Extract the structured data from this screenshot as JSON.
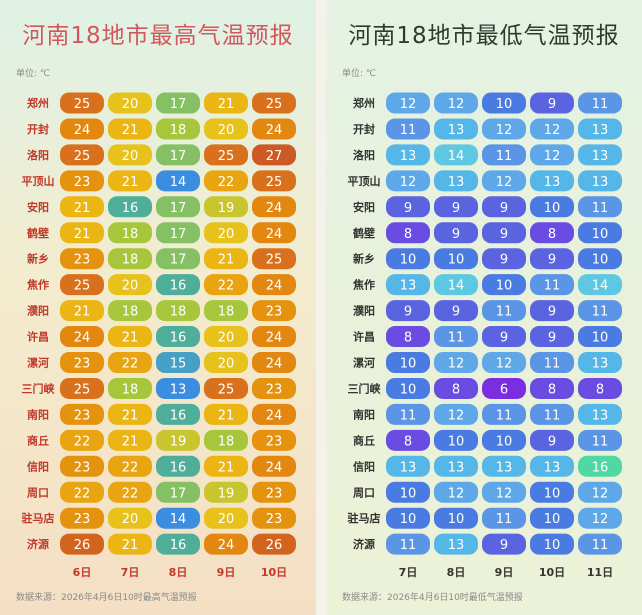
{
  "chart_data": [
    {
      "type": "heatmap",
      "title": "河南18地市最高气温预报",
      "unit_label": "单位: ℃",
      "source": "数据来源：2026年4月6日10时最高气温预报",
      "columns": [
        "6日",
        "7日",
        "8日",
        "9日",
        "10日"
      ],
      "rows": [
        "郑州",
        "开封",
        "洛阳",
        "平顶山",
        "安阳",
        "鹤壁",
        "新乡",
        "焦作",
        "濮阳",
        "许昌",
        "漯河",
        "三门峡",
        "南阳",
        "商丘",
        "信阳",
        "周口",
        "驻马店",
        "济源"
      ],
      "values": [
        [
          25,
          20,
          17,
          21,
          25
        ],
        [
          24,
          21,
          18,
          20,
          24
        ],
        [
          25,
          20,
          17,
          25,
          27
        ],
        [
          23,
          21,
          14,
          22,
          25
        ],
        [
          21,
          16,
          17,
          19,
          24
        ],
        [
          21,
          18,
          17,
          20,
          24
        ],
        [
          23,
          18,
          17,
          21,
          25
        ],
        [
          25,
          20,
          16,
          22,
          24
        ],
        [
          21,
          18,
          18,
          18,
          23
        ],
        [
          24,
          21,
          16,
          20,
          24
        ],
        [
          23,
          22,
          15,
          20,
          24
        ],
        [
          25,
          18,
          13,
          25,
          23
        ],
        [
          23,
          21,
          16,
          21,
          24
        ],
        [
          22,
          21,
          19,
          18,
          23
        ],
        [
          23,
          22,
          16,
          21,
          24
        ],
        [
          22,
          22,
          17,
          19,
          23
        ],
        [
          23,
          20,
          14,
          20,
          23
        ],
        [
          26,
          21,
          16,
          24,
          26
        ]
      ]
    },
    {
      "type": "heatmap",
      "title": "河南18地市最低气温预报",
      "unit_label": "单位: ℃",
      "source": "数据来源：2026年4月6日10时最低气温预报",
      "columns": [
        "7日",
        "8日",
        "9日",
        "10日",
        "11日"
      ],
      "rows": [
        "郑州",
        "开封",
        "洛阳",
        "平顶山",
        "安阳",
        "鹤壁",
        "新乡",
        "焦作",
        "濮阳",
        "许昌",
        "漯河",
        "三门峡",
        "南阳",
        "商丘",
        "信阳",
        "周口",
        "驻马店",
        "济源"
      ],
      "values": [
        [
          12,
          12,
          10,
          9,
          11
        ],
        [
          11,
          13,
          12,
          12,
          13
        ],
        [
          13,
          14,
          11,
          12,
          13
        ],
        [
          12,
          13,
          12,
          13,
          13
        ],
        [
          9,
          9,
          9,
          10,
          11
        ],
        [
          8,
          9,
          9,
          8,
          10
        ],
        [
          10,
          10,
          9,
          9,
          10
        ],
        [
          13,
          14,
          10,
          11,
          14
        ],
        [
          9,
          9,
          11,
          9,
          11
        ],
        [
          8,
          11,
          9,
          9,
          10
        ],
        [
          10,
          12,
          12,
          11,
          13
        ],
        [
          10,
          8,
          6,
          8,
          8
        ],
        [
          11,
          12,
          11,
          11,
          13
        ],
        [
          8,
          10,
          10,
          9,
          11
        ],
        [
          13,
          13,
          13,
          13,
          16
        ],
        [
          10,
          12,
          12,
          10,
          12
        ],
        [
          10,
          10,
          11,
          10,
          12
        ],
        [
          11,
          13,
          9,
          10,
          11
        ]
      ]
    }
  ],
  "colors": {
    "high_scale": {
      "13": "#3b8de0",
      "14": "#3b8de0",
      "15": "#44a0c4",
      "16": "#4fae9a",
      "17": "#86c064",
      "18": "#a8c63c",
      "19": "#c9c52e",
      "20": "#e6c21a",
      "21": "#ebb514",
      "22": "#e9a412",
      "23": "#e5930f",
      "24": "#e28710",
      "25": "#d9711c",
      "26": "#d2641e",
      "27": "#cc5a25"
    },
    "low_scale": {
      "6": "#7a2ee0",
      "8": "#6a4ce3",
      "9": "#5a63e0",
      "10": "#4a7be2",
      "11": "#5a95e6",
      "12": "#5ea8ea",
      "13": "#55b7e8",
      "14": "#5ec8e2",
      "16": "#4fd8a4"
    }
  }
}
